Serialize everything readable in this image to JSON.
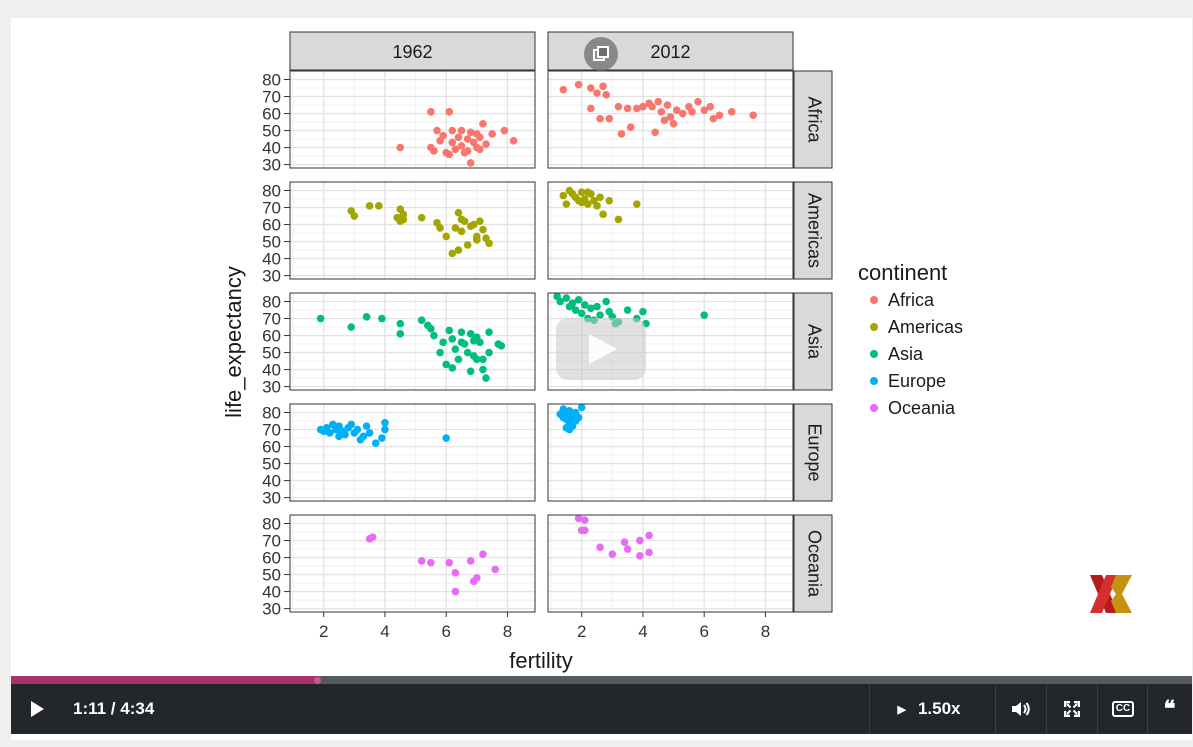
{
  "player": {
    "time_current": "1:11",
    "time_total": "4:34",
    "time_display": "1:11 / 4:34",
    "speed": "1.50x",
    "progress_fraction": 0.259,
    "icons": [
      "play-icon",
      "speed-arrow-icon",
      "volume-icon",
      "fullscreen-icon",
      "cc-icon",
      "transcript-icon",
      "popout-icon",
      "big-play-icon",
      "brand-logo"
    ]
  },
  "colors": {
    "Africa": "#f8766d",
    "Americas": "#a3a500",
    "Asia": "#00bf7d",
    "Europe": "#00b0f6",
    "Oceania": "#e76bf3",
    "progress": "#a8336a",
    "controls_bg": "#23262b"
  },
  "chart_data": {
    "type": "scatter",
    "xlabel": "fertility",
    "ylabel": "life_expectancy",
    "xlim": [
      0.9,
      8.9
    ],
    "ylim": [
      28,
      85
    ],
    "x_ticks": [
      2,
      4,
      6,
      8
    ],
    "y_ticks": [
      30,
      40,
      50,
      60,
      70,
      80
    ],
    "columns": [
      "1962",
      "2012"
    ],
    "rows": [
      "Africa",
      "Americas",
      "Asia",
      "Europe",
      "Oceania"
    ],
    "legend": {
      "title": "continent",
      "entries": [
        "Africa",
        "Americas",
        "Asia",
        "Europe",
        "Oceania"
      ],
      "placement": "right"
    },
    "grid": true,
    "panels": {
      "Africa": {
        "1962": [
          [
            4.5,
            40
          ],
          [
            5.5,
            61
          ],
          [
            6.1,
            61
          ],
          [
            5.5,
            40
          ],
          [
            5.6,
            38
          ],
          [
            5.8,
            44
          ],
          [
            5.9,
            47
          ],
          [
            6.0,
            37
          ],
          [
            6.2,
            50
          ],
          [
            6.2,
            43
          ],
          [
            6.3,
            39
          ],
          [
            6.4,
            46
          ],
          [
            6.5,
            50
          ],
          [
            6.5,
            41
          ],
          [
            6.6,
            37
          ],
          [
            6.7,
            45
          ],
          [
            6.7,
            38
          ],
          [
            6.8,
            49
          ],
          [
            6.8,
            31
          ],
          [
            6.9,
            43
          ],
          [
            7.0,
            48
          ],
          [
            7.0,
            40
          ],
          [
            7.1,
            46
          ],
          [
            7.2,
            54
          ],
          [
            7.3,
            42
          ],
          [
            7.5,
            48
          ],
          [
            7.9,
            50
          ],
          [
            8.2,
            44
          ],
          [
            6.1,
            36
          ],
          [
            5.7,
            50
          ],
          [
            7.1,
            39
          ]
        ],
        "2012": [
          [
            1.4,
            74
          ],
          [
            1.9,
            77
          ],
          [
            2.3,
            75
          ],
          [
            2.5,
            72
          ],
          [
            2.7,
            76
          ],
          [
            2.8,
            71
          ],
          [
            2.9,
            57
          ],
          [
            3.2,
            64
          ],
          [
            3.5,
            63
          ],
          [
            3.8,
            63
          ],
          [
            4.0,
            64
          ],
          [
            4.3,
            64
          ],
          [
            4.5,
            67
          ],
          [
            4.6,
            61
          ],
          [
            4.8,
            65
          ],
          [
            4.9,
            58
          ],
          [
            5.1,
            62
          ],
          [
            5.3,
            60
          ],
          [
            5.6,
            61
          ],
          [
            5.8,
            67
          ],
          [
            6.0,
            62
          ],
          [
            6.3,
            57
          ],
          [
            6.5,
            59
          ],
          [
            6.9,
            61
          ],
          [
            7.6,
            59
          ],
          [
            3.3,
            48
          ],
          [
            3.6,
            52
          ],
          [
            4.4,
            49
          ],
          [
            2.3,
            63
          ],
          [
            5.0,
            54
          ],
          [
            4.7,
            56
          ],
          [
            2.6,
            57
          ],
          [
            5.5,
            64
          ],
          [
            6.2,
            64
          ],
          [
            4.2,
            66
          ]
        ]
      },
      "Americas": {
        "1962": [
          [
            2.9,
            68
          ],
          [
            3.0,
            65
          ],
          [
            3.5,
            71
          ],
          [
            3.8,
            71
          ],
          [
            4.4,
            64
          ],
          [
            4.5,
            62
          ],
          [
            4.6,
            63
          ],
          [
            4.5,
            69
          ],
          [
            5.2,
            64
          ],
          [
            5.7,
            61
          ],
          [
            5.8,
            58
          ],
          [
            6.0,
            53
          ],
          [
            6.3,
            58
          ],
          [
            6.4,
            67
          ],
          [
            6.5,
            56
          ],
          [
            6.6,
            62
          ],
          [
            6.7,
            48
          ],
          [
            6.8,
            59
          ],
          [
            6.9,
            60
          ],
          [
            6.2,
            43
          ],
          [
            6.4,
            45
          ],
          [
            7.0,
            53
          ],
          [
            7.2,
            57
          ],
          [
            7.1,
            62
          ],
          [
            7.3,
            52
          ],
          [
            7.4,
            49
          ],
          [
            7.0,
            51
          ],
          [
            6.5,
            63
          ],
          [
            4.6,
            66
          ]
        ],
        "2012": [
          [
            1.4,
            77
          ],
          [
            1.6,
            80
          ],
          [
            1.7,
            78
          ],
          [
            1.8,
            76
          ],
          [
            1.9,
            74
          ],
          [
            2.0,
            79
          ],
          [
            2.0,
            73
          ],
          [
            2.1,
            75
          ],
          [
            2.2,
            72
          ],
          [
            2.3,
            78
          ],
          [
            2.4,
            74
          ],
          [
            2.5,
            71
          ],
          [
            2.6,
            76
          ],
          [
            2.7,
            66
          ],
          [
            2.9,
            74
          ],
          [
            3.2,
            63
          ],
          [
            3.8,
            72
          ],
          [
            1.5,
            72
          ],
          [
            2.2,
            79
          ]
        ]
      },
      "Asia": {
        "1962": [
          [
            1.9,
            70
          ],
          [
            2.9,
            65
          ],
          [
            3.4,
            71
          ],
          [
            3.9,
            70
          ],
          [
            4.5,
            67
          ],
          [
            4.5,
            61
          ],
          [
            5.2,
            69
          ],
          [
            5.5,
            64
          ],
          [
            5.6,
            60
          ],
          [
            5.9,
            56
          ],
          [
            6.1,
            63
          ],
          [
            6.2,
            58
          ],
          [
            6.3,
            52
          ],
          [
            6.4,
            46
          ],
          [
            6.5,
            62
          ],
          [
            6.6,
            55
          ],
          [
            6.7,
            50
          ],
          [
            6.8,
            61
          ],
          [
            6.9,
            48
          ],
          [
            7.0,
            59
          ],
          [
            7.1,
            56
          ],
          [
            7.2,
            46
          ],
          [
            7.3,
            35
          ],
          [
            7.4,
            50
          ],
          [
            7.7,
            55
          ],
          [
            7.8,
            54
          ],
          [
            6.0,
            43
          ],
          [
            6.2,
            41
          ],
          [
            6.8,
            39
          ],
          [
            7.2,
            40
          ],
          [
            5.4,
            66
          ],
          [
            6.5,
            56
          ],
          [
            7.0,
            46
          ],
          [
            7.4,
            62
          ],
          [
            5.8,
            50
          ],
          [
            6.9,
            57
          ]
        ],
        "2012": [
          [
            1.2,
            83
          ],
          [
            1.3,
            80
          ],
          [
            1.5,
            82
          ],
          [
            1.6,
            77
          ],
          [
            1.7,
            79
          ],
          [
            1.8,
            75
          ],
          [
            1.9,
            81
          ],
          [
            2.0,
            73
          ],
          [
            2.1,
            78
          ],
          [
            2.2,
            70
          ],
          [
            2.3,
            76
          ],
          [
            2.5,
            77
          ],
          [
            2.6,
            72
          ],
          [
            2.8,
            80
          ],
          [
            2.9,
            74
          ],
          [
            3.0,
            71
          ],
          [
            3.2,
            68
          ],
          [
            3.5,
            75
          ],
          [
            3.8,
            70
          ],
          [
            4.0,
            74
          ],
          [
            4.1,
            67
          ],
          [
            6.0,
            72
          ],
          [
            2.4,
            69
          ],
          [
            3.1,
            67
          ]
        ]
      },
      "Europe": {
        "1962": [
          [
            1.9,
            70
          ],
          [
            2.0,
            69
          ],
          [
            2.1,
            71
          ],
          [
            2.2,
            68
          ],
          [
            2.3,
            73
          ],
          [
            2.4,
            70
          ],
          [
            2.5,
            72
          ],
          [
            2.6,
            69
          ],
          [
            2.7,
            67
          ],
          [
            2.8,
            71
          ],
          [
            2.9,
            73
          ],
          [
            3.0,
            68
          ],
          [
            3.1,
            70
          ],
          [
            3.2,
            64
          ],
          [
            3.4,
            72
          ],
          [
            3.5,
            68
          ],
          [
            3.7,
            62
          ],
          [
            3.9,
            65
          ],
          [
            4.0,
            70
          ],
          [
            4.0,
            74
          ],
          [
            6.0,
            65
          ],
          [
            2.5,
            66
          ],
          [
            3.3,
            66
          ]
        ],
        "2012": [
          [
            1.3,
            79
          ],
          [
            1.4,
            82
          ],
          [
            1.5,
            80
          ],
          [
            1.5,
            76
          ],
          [
            1.6,
            81
          ],
          [
            1.6,
            74
          ],
          [
            1.7,
            78
          ],
          [
            1.7,
            72
          ],
          [
            1.8,
            80
          ],
          [
            1.9,
            77
          ],
          [
            2.0,
            83
          ],
          [
            1.5,
            71
          ],
          [
            1.8,
            75
          ],
          [
            1.4,
            77
          ],
          [
            1.6,
            70
          ]
        ]
      },
      "Oceania": {
        "1962": [
          [
            3.5,
            71
          ],
          [
            3.6,
            72
          ],
          [
            5.2,
            58
          ],
          [
            5.5,
            57
          ],
          [
            6.1,
            57
          ],
          [
            6.3,
            51
          ],
          [
            6.3,
            40
          ],
          [
            6.8,
            58
          ],
          [
            6.9,
            46
          ],
          [
            7.0,
            48
          ],
          [
            7.2,
            62
          ],
          [
            7.6,
            53
          ]
        ],
        "2012": [
          [
            1.9,
            83
          ],
          [
            2.1,
            82
          ],
          [
            2.0,
            76
          ],
          [
            2.1,
            76
          ],
          [
            2.6,
            66
          ],
          [
            3.0,
            62
          ],
          [
            3.4,
            69
          ],
          [
            3.5,
            65
          ],
          [
            3.9,
            70
          ],
          [
            3.9,
            61
          ],
          [
            4.2,
            63
          ],
          [
            4.2,
            73
          ]
        ]
      }
    }
  }
}
